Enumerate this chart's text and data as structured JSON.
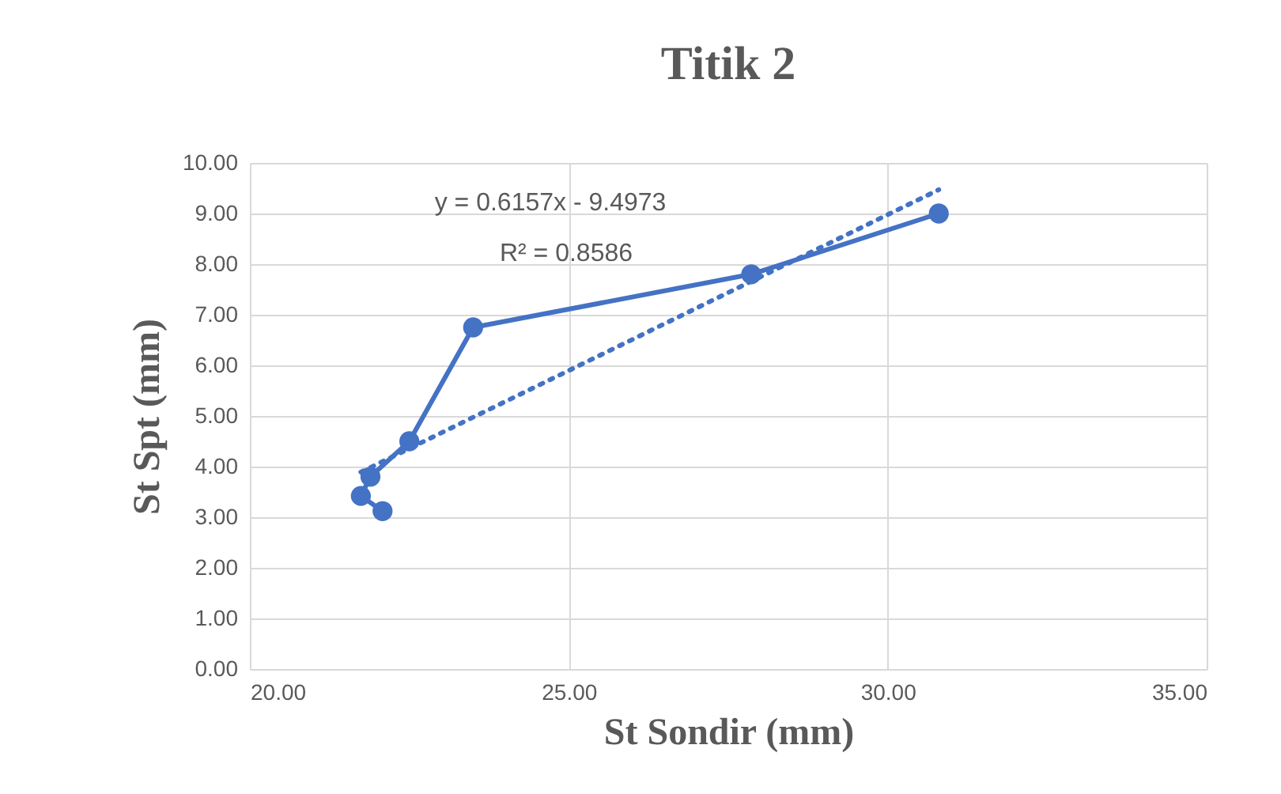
{
  "chart_data": {
    "type": "line",
    "title": "Titik 2",
    "xlabel": "St Sondir (mm)",
    "ylabel": "St Spt (mm)",
    "series": [
      {
        "color": "#4472c4",
        "marker": "circle",
        "line_style": "solid",
        "x": [
          22.08,
          21.74,
          21.89,
          22.5,
          23.5,
          27.86,
          30.8
        ],
        "values": [
          3.12,
          3.42,
          3.8,
          4.5,
          6.75,
          7.8,
          9.0
        ]
      },
      {
        "color": "#4472c4",
        "marker": "none",
        "line_style": "dotted",
        "x": [
          21.74,
          30.8
        ],
        "values": [
          3.89,
          9.47
        ]
      }
    ],
    "annotations": [
      "y = 0.6157x - 9.4973",
      "R² = 0.8586"
    ],
    "xlim": [
      20,
      35
    ],
    "xticks": [
      {
        "value": 20,
        "label": "20.00"
      },
      {
        "value": 25,
        "label": "25.00"
      },
      {
        "value": 30,
        "label": "30.00"
      },
      {
        "value": 35,
        "label": "35.00"
      }
    ],
    "ylim": [
      0,
      10
    ],
    "yticks": [
      {
        "value": 0,
        "label": "0.00"
      },
      {
        "value": 1,
        "label": "1.00"
      },
      {
        "value": 2,
        "label": "2.00"
      },
      {
        "value": 3,
        "label": "3.00"
      },
      {
        "value": 4,
        "label": "4.00"
      },
      {
        "value": 5,
        "label": "5.00"
      },
      {
        "value": 6,
        "label": "6.00"
      },
      {
        "value": 7,
        "label": "7.00"
      },
      {
        "value": 8,
        "label": "8.00"
      },
      {
        "value": 9,
        "label": "9.00"
      },
      {
        "value": 10,
        "label": "10.00"
      }
    ],
    "grid": true
  }
}
